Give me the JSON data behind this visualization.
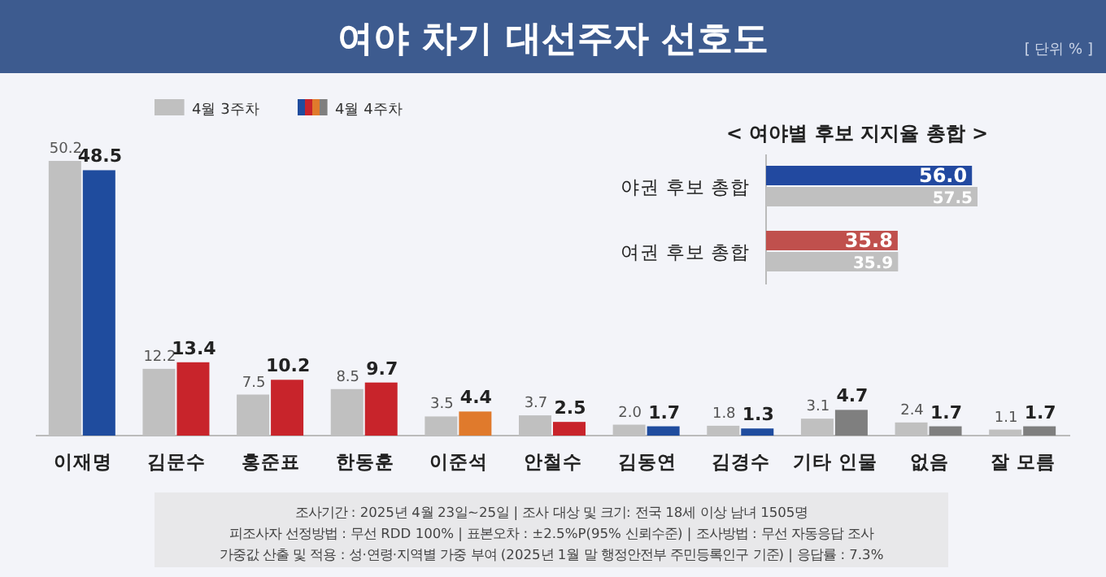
{
  "chart_data": [
    {
      "type": "bar",
      "title": "여야 차기 대선주자 선호도",
      "categories": [
        "이재명",
        "김문수",
        "홍준표",
        "한동훈",
        "이준석",
        "안철수",
        "김동연",
        "김경수",
        "기타 인물",
        "없음",
        "잘 모름"
      ],
      "series": [
        {
          "name": "4월 3주차",
          "color": "#c0c0c0",
          "values": [
            50.2,
            12.2,
            7.5,
            8.5,
            3.5,
            3.7,
            2.0,
            1.8,
            3.1,
            2.4,
            1.1
          ],
          "value_labels": [
            "50.2",
            "12.2",
            "7.5",
            "8.5",
            "3.5",
            "3.7",
            "2.0",
            "1.8",
            "3.1",
            "2.4",
            "1.1"
          ]
        },
        {
          "name": "4월 4주차",
          "colors": [
            "#1f4c9e",
            "#c8242b",
            "#c8242b",
            "#c8242b",
            "#e07a2c",
            "#c8242b",
            "#1f4c9e",
            "#1f4c9e",
            "#7f7f7f",
            "#7f7f7f",
            "#7f7f7f"
          ],
          "values": [
            48.5,
            13.4,
            10.2,
            9.7,
            4.4,
            2.5,
            1.7,
            1.3,
            4.7,
            1.7,
            1.7
          ],
          "value_labels": [
            "48.5",
            "13.4",
            "10.2",
            "9.7",
            "4.4",
            "2.5",
            "1.7",
            "1.3",
            "4.7",
            "1.7",
            "1.7"
          ]
        }
      ],
      "legend": "top left",
      "annotations": [
        "[ 단위 % ]",
        "조사기간 : 2025년 4월 23일~25일 | 조사 대상 및 크기: 전국 18세 이상 남녀 1505명",
        "피조사자 선정방법 : 무선 RDD 100% | 표본오차 : ±2.5%P(95% 신뢰수준) | 조사방법 : 무선 자동응답 조사",
        "가중값 산출 및 적용 : 성·연령·지역별 가중 부여 (2025년 1월 말 행정안전부 주민등록인구 기준) | 응답률 : 7.3%"
      ]
    },
    {
      "type": "bar",
      "orientation": "horizontal",
      "title": "< 여야별 후보 지지율 총합 >",
      "categories": [
        "야권 후보 총합",
        "여권 후보 총합"
      ],
      "series": [
        {
          "colors": [
            "#2249a0",
            "#c0504d"
          ],
          "values": [
            56.0,
            35.8
          ],
          "value_labels": [
            "56.0",
            "35.8"
          ]
        },
        {
          "color": "#c0c0c0",
          "values": [
            57.5,
            35.9
          ],
          "value_labels": [
            "57.5",
            "35.9"
          ]
        }
      ]
    }
  ]
}
